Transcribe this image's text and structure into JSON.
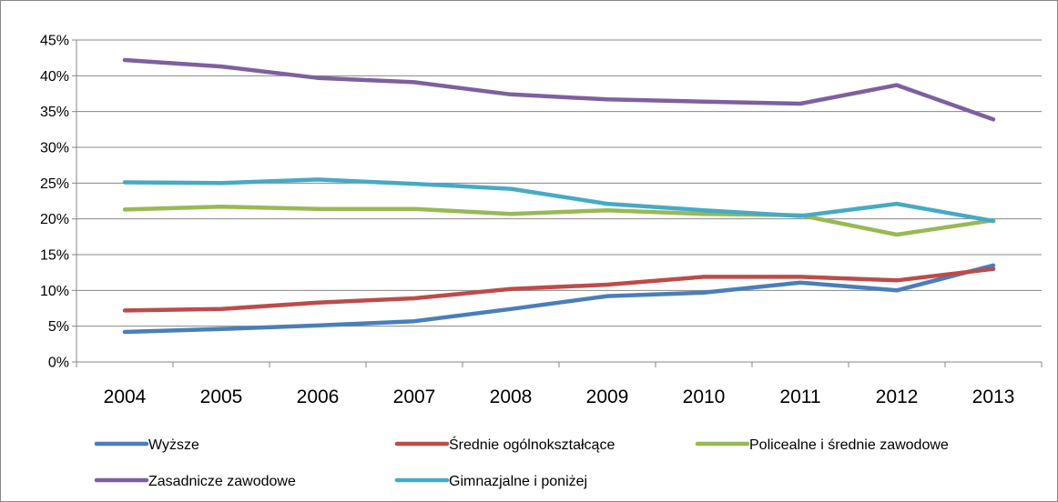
{
  "chart_data": {
    "type": "line",
    "title": "",
    "xlabel": "",
    "ylabel": "",
    "x": [
      "2004",
      "2005",
      "2006",
      "2007",
      "2008",
      "2009",
      "2010",
      "2011",
      "2012",
      "2013"
    ],
    "ylim": [
      0,
      45
    ],
    "yticks": [
      0,
      5,
      10,
      15,
      20,
      25,
      30,
      35,
      40,
      45
    ],
    "ytick_labels": [
      "0%",
      "5%",
      "10%",
      "15%",
      "20%",
      "25%",
      "30%",
      "35%",
      "40%",
      "45%"
    ],
    "grid": "horizontal",
    "legend_position": "bottom",
    "series": [
      {
        "name": "Wyższe",
        "color": "#4A7EBB",
        "values": [
          4.2,
          4.6,
          5.1,
          5.7,
          7.4,
          9.2,
          9.7,
          11.1,
          10.0,
          13.5
        ]
      },
      {
        "name": "Średnie ogólnokształcące",
        "color": "#BE4B48",
        "values": [
          7.2,
          7.4,
          8.3,
          8.9,
          10.2,
          10.8,
          11.9,
          11.9,
          11.4,
          13.0
        ]
      },
      {
        "name": "Policealne i średnie zawodowe",
        "color": "#98B954",
        "values": [
          21.3,
          21.7,
          21.4,
          21.4,
          20.7,
          21.2,
          20.7,
          20.5,
          17.8,
          19.8
        ]
      },
      {
        "name": "Zasadnicze zawodowe",
        "color": "#7D60A0",
        "values": [
          42.2,
          41.3,
          39.7,
          39.1,
          37.4,
          36.7,
          36.4,
          36.1,
          38.7,
          33.9
        ]
      },
      {
        "name": "Gimnazjalne i poniżej",
        "color": "#46AAC5",
        "values": [
          25.1,
          25.0,
          25.5,
          24.9,
          24.2,
          22.1,
          21.2,
          20.4,
          22.1,
          19.7
        ]
      }
    ]
  }
}
